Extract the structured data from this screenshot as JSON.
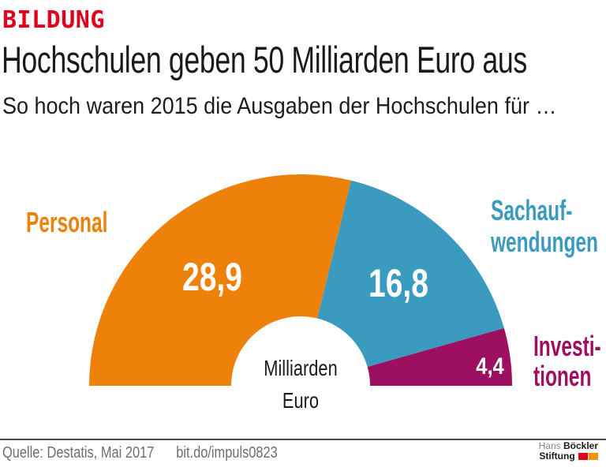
{
  "header": {
    "kicker": "BILDUNG",
    "title": "Hochschulen geben 50 Milliarden Euro aus",
    "subtitle": "So hoch waren 2015 die Ausgaben der Hochschulen für …"
  },
  "chart_data": {
    "type": "pie",
    "variant": "half_donut",
    "start_angle_deg": 180,
    "end_angle_deg": 0,
    "total": 50.1,
    "unit": "Milliarden Euro",
    "center_label_lines": [
      "Milliarden",
      "Euro"
    ],
    "legend_position": "outside",
    "segments": [
      {
        "id": "personal",
        "label": "Personal",
        "label_lines": [
          "Personal"
        ],
        "value": 28.9,
        "value_display": "28,9",
        "color": "#ee8109"
      },
      {
        "id": "sachaufwendungen",
        "label": "Sachaufwendungen",
        "label_lines": [
          "Sachauf-",
          "wendungen"
        ],
        "value": 16.8,
        "value_display": "16,8",
        "color": "#3a9abf"
      },
      {
        "id": "investitionen",
        "label": "Investitionen",
        "label_lines": [
          "Investi-",
          "tionen"
        ],
        "value": 4.4,
        "value_display": "4,4",
        "color": "#9d0f60"
      }
    ]
  },
  "footer": {
    "source": "Quelle: Destatis, Mai 2017",
    "link": "bit.do/impuls0823",
    "logo": {
      "name_light": "Hans",
      "name_bold": "Böckler",
      "line2": "Stiftung",
      "square_colors": [
        "#e2001a",
        "#f29400"
      ]
    }
  },
  "colors": {
    "kicker_red": "#e2001a",
    "title_text": "#1a1a1a",
    "subtitle_text": "#1d1d1b",
    "footer_text": "#6e6e6e",
    "divider": "#4a4a4a",
    "personal_orange": "#ee8109",
    "sachaufwendungen_blue": "#3a9abf",
    "investitionen_purple": "#9d0f60"
  }
}
